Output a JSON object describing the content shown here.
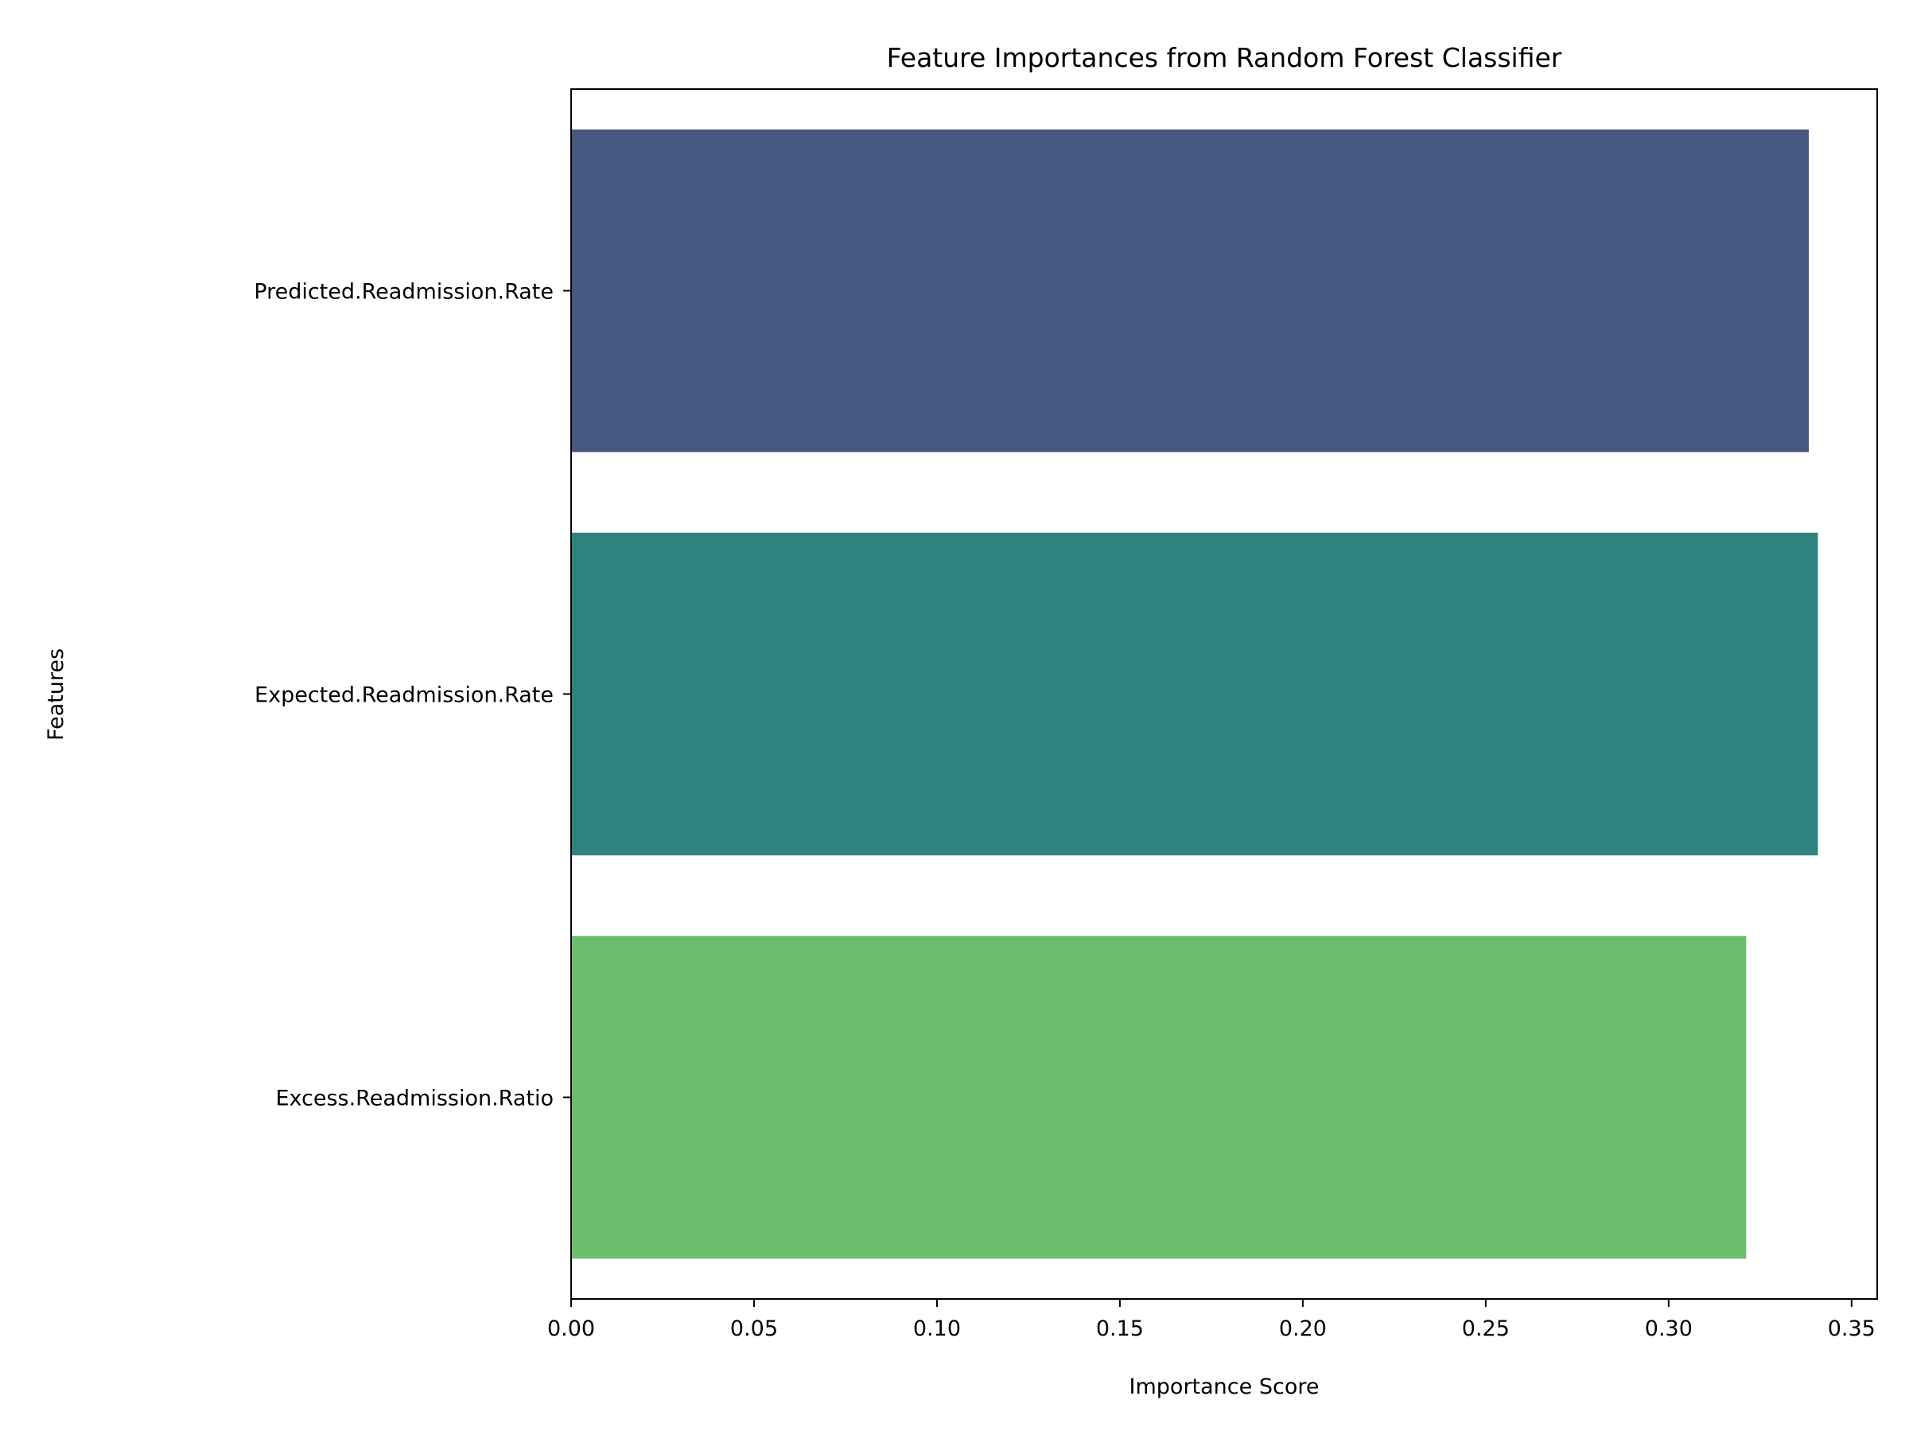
{
  "chart_data": {
    "type": "bar",
    "orientation": "horizontal",
    "title": "Feature Importances from Random Forest Classifier",
    "xlabel": "Importance Score",
    "ylabel": "Features",
    "categories": [
      "Predicted.Readmission.Rate",
      "Expected.Readmission.Rate",
      "Excess.Readmission.Ratio"
    ],
    "values": [
      0.3383,
      0.3408,
      0.3212
    ],
    "colors": [
      "#46587f",
      "#2e837e",
      "#6cbc6e"
    ],
    "xlim": [
      0,
      0.357
    ],
    "xticks": [
      0.0,
      0.05,
      0.1,
      0.15,
      0.2,
      0.25,
      0.3,
      0.35
    ],
    "xtick_labels": [
      "0.00",
      "0.05",
      "0.10",
      "0.15",
      "0.20",
      "0.25",
      "0.30",
      "0.35"
    ],
    "grid": false,
    "legend": false
  }
}
